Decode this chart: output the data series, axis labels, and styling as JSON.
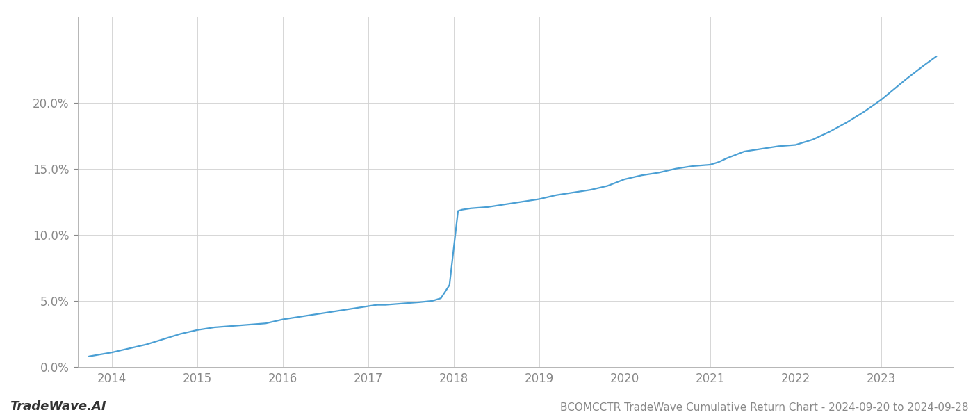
{
  "title": "BCOMCCTR TradeWave Cumulative Return Chart - 2024-09-20 to 2024-09-28",
  "watermark": "TradeWave.AI",
  "line_color": "#4a9fd4",
  "background_color": "#ffffff",
  "grid_color": "#d0d0d0",
  "x_years": [
    2014,
    2015,
    2016,
    2017,
    2018,
    2019,
    2020,
    2021,
    2022,
    2023
  ],
  "x_data": [
    2013.73,
    2014.0,
    2014.2,
    2014.4,
    2014.6,
    2014.8,
    2015.0,
    2015.2,
    2015.4,
    2015.6,
    2015.8,
    2016.0,
    2016.2,
    2016.4,
    2016.6,
    2016.8,
    2017.0,
    2017.1,
    2017.2,
    2017.4,
    2017.6,
    2017.75,
    2017.85,
    2017.95,
    2018.0,
    2018.05,
    2018.1,
    2018.2,
    2018.4,
    2018.6,
    2018.8,
    2019.0,
    2019.2,
    2019.4,
    2019.6,
    2019.8,
    2020.0,
    2020.2,
    2020.4,
    2020.6,
    2020.8,
    2021.0,
    2021.1,
    2021.2,
    2021.4,
    2021.6,
    2021.8,
    2022.0,
    2022.2,
    2022.4,
    2022.6,
    2022.8,
    2023.0,
    2023.15,
    2023.3,
    2023.5,
    2023.65
  ],
  "y_data": [
    0.008,
    0.011,
    0.014,
    0.017,
    0.021,
    0.025,
    0.028,
    0.03,
    0.031,
    0.032,
    0.033,
    0.036,
    0.038,
    0.04,
    0.042,
    0.044,
    0.046,
    0.047,
    0.047,
    0.048,
    0.049,
    0.05,
    0.052,
    0.062,
    0.09,
    0.118,
    0.119,
    0.12,
    0.121,
    0.123,
    0.125,
    0.127,
    0.13,
    0.132,
    0.134,
    0.137,
    0.142,
    0.145,
    0.147,
    0.15,
    0.152,
    0.153,
    0.155,
    0.158,
    0.163,
    0.165,
    0.167,
    0.168,
    0.172,
    0.178,
    0.185,
    0.193,
    0.202,
    0.21,
    0.218,
    0.228,
    0.235
  ],
  "ylim": [
    0.0,
    0.265
  ],
  "xlim": [
    2013.6,
    2023.85
  ],
  "yticks": [
    0.0,
    0.05,
    0.1,
    0.15,
    0.2
  ],
  "ytick_labels": [
    "0.0%",
    "5.0%",
    "10.0%",
    "15.0%",
    "20.0%"
  ],
  "text_color": "#888888",
  "axis_label_fontsize": 12,
  "watermark_fontsize": 13,
  "title_fontsize": 11,
  "line_width": 1.6
}
